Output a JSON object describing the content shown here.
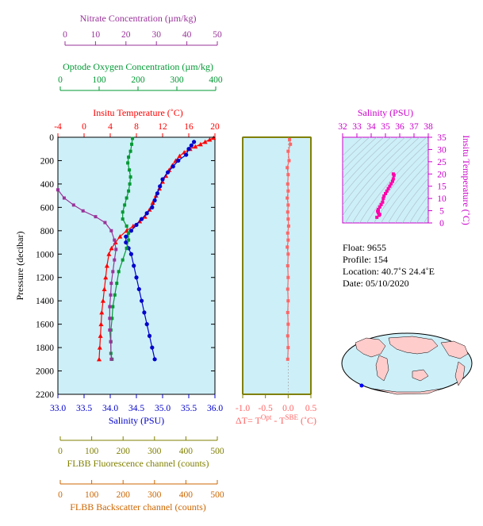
{
  "colors": {
    "nitrate": "#993399",
    "oxygen": "#009933",
    "temperature": "#ff0000",
    "salinity": "#0000cc",
    "delta": "#ff6666",
    "ts_axis": "#cc00cc",
    "flbb_fluor": "#808000",
    "flbb_back": "#cc6600",
    "plot_bg": "#cdeff8"
  },
  "info": {
    "float": "Float:  9655",
    "profile": "Profile:  154",
    "location": "Location:  40.7˚S  24.4˚E",
    "date": "Date:  05/10/2020"
  },
  "chart_data": [
    {
      "type": "line",
      "name": "main-profile",
      "ylabel": "Pressure (decibar)",
      "ylim": [
        0,
        2200
      ],
      "yticks": [
        0,
        200,
        400,
        600,
        800,
        1000,
        1200,
        1400,
        1600,
        1800,
        2000,
        2200
      ],
      "axes": [
        {
          "key": "nitrate",
          "label": "Nitrate Concentration (µm/kg)",
          "range": [
            0,
            50
          ],
          "ticks": [
            0,
            10,
            20,
            30,
            40,
            50
          ],
          "position": "top"
        },
        {
          "key": "oxygen",
          "label": "Optode Oxygen Concentration (µm/kg)",
          "range": [
            0,
            400
          ],
          "ticks": [
            0,
            100,
            200,
            300,
            400
          ],
          "position": "top"
        },
        {
          "key": "temperature",
          "label": "Insitu Temperature (˚C)",
          "range": [
            -4,
            20
          ],
          "ticks": [
            -4,
            0,
            4,
            8,
            12,
            16,
            20
          ],
          "position": "top"
        },
        {
          "key": "salinity",
          "label": "Salinity (PSU)",
          "range": [
            33.0,
            36.0
          ],
          "ticks": [
            "33.0",
            "33.5",
            "34.0",
            "34.5",
            "35.0",
            "35.5",
            "36.0"
          ],
          "position": "bottom"
        },
        {
          "key": "fluor",
          "label": "FLBB Fluorescence channel (counts)",
          "range": [
            0,
            500
          ],
          "ticks": [
            0,
            100,
            200,
            300,
            400,
            500
          ],
          "position": "bottom"
        },
        {
          "key": "back",
          "label": "FLBB Backscatter channel (counts)",
          "range": [
            0,
            500
          ],
          "ticks": [
            0,
            100,
            200,
            300,
            400,
            500
          ],
          "position": "bottom"
        }
      ],
      "series": [
        {
          "key": "temperature",
          "marker": "triangle",
          "points": [
            [
              19.8,
              5
            ],
            [
              19.2,
              20
            ],
            [
              18.5,
              40
            ],
            [
              17.8,
              60
            ],
            [
              17.0,
              80
            ],
            [
              16.2,
              100
            ],
            [
              15.3,
              130
            ],
            [
              14.6,
              160
            ],
            [
              14.0,
              200
            ],
            [
              13.5,
              240
            ],
            [
              13.0,
              280
            ],
            [
              12.5,
              330
            ],
            [
              12.0,
              380
            ],
            [
              11.5,
              440
            ],
            [
              11.0,
              500
            ],
            [
              10.5,
              560
            ],
            [
              10.0,
              620
            ],
            [
              9.3,
              680
            ],
            [
              8.5,
              720
            ],
            [
              7.5,
              760
            ],
            [
              6.5,
              800
            ],
            [
              5.5,
              850
            ],
            [
              4.8,
              900
            ],
            [
              4.2,
              950
            ],
            [
              3.8,
              1000
            ],
            [
              3.5,
              1100
            ],
            [
              3.3,
              1200
            ],
            [
              3.1,
              1300
            ],
            [
              2.9,
              1400
            ],
            [
              2.7,
              1500
            ],
            [
              2.6,
              1600
            ],
            [
              2.5,
              1700
            ],
            [
              2.4,
              1800
            ],
            [
              2.3,
              1900
            ]
          ]
        },
        {
          "key": "salinity",
          "marker": "circle",
          "points": [
            [
              35.6,
              40
            ],
            [
              35.55,
              70
            ],
            [
              35.5,
              100
            ],
            [
              35.45,
              150
            ],
            [
              35.3,
              200
            ],
            [
              35.2,
              250
            ],
            [
              35.1,
              300
            ],
            [
              35.0,
              360
            ],
            [
              34.95,
              420
            ],
            [
              34.9,
              480
            ],
            [
              34.85,
              540
            ],
            [
              34.8,
              600
            ],
            [
              34.7,
              650
            ],
            [
              34.6,
              700
            ],
            [
              34.5,
              750
            ],
            [
              34.4,
              800
            ],
            [
              34.3,
              850
            ],
            [
              34.3,
              900
            ],
            [
              34.35,
              950
            ],
            [
              34.4,
              1000
            ],
            [
              34.45,
              1100
            ],
            [
              34.5,
              1200
            ],
            [
              34.55,
              1300
            ],
            [
              34.6,
              1400
            ],
            [
              34.65,
              1500
            ],
            [
              34.7,
              1600
            ],
            [
              34.75,
              1700
            ],
            [
              34.8,
              1800
            ],
            [
              34.85,
              1900
            ]
          ]
        },
        {
          "key": "oxygen",
          "marker": "square",
          "points": [
            [
              190,
              10
            ],
            [
              188,
              60
            ],
            [
              185,
              120
            ],
            [
              180,
              170
            ],
            [
              178,
              220
            ],
            [
              182,
              280
            ],
            [
              185,
              340
            ],
            [
              183,
              400
            ],
            [
              180,
              460
            ],
            [
              175,
              520
            ],
            [
              170,
              580
            ],
            [
              165,
              640
            ],
            [
              165,
              700
            ],
            [
              175,
              760
            ],
            [
              180,
              820
            ],
            [
              180,
              880
            ],
            [
              175,
              950
            ],
            [
              165,
              1050
            ],
            [
              155,
              1150
            ],
            [
              150,
              1250
            ],
            [
              145,
              1350
            ],
            [
              140,
              1450
            ],
            [
              138,
              1550
            ],
            [
              135,
              1650
            ],
            [
              135,
              1750
            ],
            [
              135,
              1850
            ],
            [
              138,
              1900
            ]
          ]
        },
        {
          "key": "nitrate",
          "marker": "square",
          "points": [
            [
              0,
              450
            ],
            [
              2,
              520
            ],
            [
              5,
              580
            ],
            [
              8,
              630
            ],
            [
              12,
              680
            ],
            [
              15,
              730
            ],
            [
              17,
              800
            ],
            [
              18,
              880
            ],
            [
              18.5,
              960
            ],
            [
              18,
              1050
            ],
            [
              17.5,
              1150
            ],
            [
              17,
              1250
            ],
            [
              16.8,
              1350
            ],
            [
              16.5,
              1450
            ],
            [
              16.5,
              1550
            ],
            [
              16.5,
              1650
            ],
            [
              16.8,
              1750
            ],
            [
              17,
              1900
            ]
          ]
        }
      ]
    },
    {
      "type": "scatter",
      "name": "delta-t",
      "xlabel": "ΔT= T^Opt - T^SBE (˚C)",
      "xlabel_parts": {
        "prefix": "ΔT= T",
        "sup1": "Opt",
        "mid": " - T",
        "sup2": "SBE",
        "suffix": " (˚C)"
      },
      "xlim": [
        -1.0,
        0.5
      ],
      "xticks": [
        "-1.0",
        "-0.5",
        "0.0",
        "0.5"
      ],
      "ylim": [
        0,
        2200
      ],
      "points": [
        [
          0.03,
          20
        ],
        [
          0.05,
          60
        ],
        [
          0.0,
          120
        ],
        [
          0.02,
          200
        ],
        [
          -0.02,
          260
        ],
        [
          0.0,
          320
        ],
        [
          -0.01,
          400
        ],
        [
          0.0,
          460
        ],
        [
          -0.02,
          520
        ],
        [
          0.0,
          580
        ],
        [
          -0.01,
          640
        ],
        [
          0.0,
          700
        ],
        [
          0.01,
          760
        ],
        [
          -0.01,
          820
        ],
        [
          0.0,
          880
        ],
        [
          -0.02,
          940
        ],
        [
          0.0,
          1000
        ],
        [
          -0.01,
          1100
        ],
        [
          0.0,
          1200
        ],
        [
          -0.01,
          1300
        ],
        [
          0.0,
          1400
        ],
        [
          -0.01,
          1500
        ],
        [
          0.0,
          1600
        ],
        [
          -0.01,
          1700
        ],
        [
          0.0,
          1800
        ],
        [
          -0.01,
          1900
        ]
      ]
    },
    {
      "type": "line",
      "name": "ts-diagram",
      "xlabel": "Salinity (PSU)",
      "ylabel": "Insitu Temperature (˚C)",
      "xlim": [
        32,
        38
      ],
      "ylim": [
        0,
        35
      ],
      "xticks": [
        32,
        33,
        34,
        35,
        36,
        37,
        38
      ],
      "yticks": [
        0,
        5,
        10,
        15,
        20,
        25,
        30,
        35
      ],
      "points": [
        [
          34.4,
          2.3
        ],
        [
          34.55,
          3.1
        ],
        [
          34.6,
          3.5
        ],
        [
          34.5,
          4.2
        ],
        [
          34.45,
          4.8
        ],
        [
          34.5,
          5.5
        ],
        [
          34.6,
          6.5
        ],
        [
          34.7,
          7.5
        ],
        [
          34.8,
          8.5
        ],
        [
          34.85,
          10
        ],
        [
          34.9,
          11
        ],
        [
          35.0,
          12
        ],
        [
          35.1,
          13
        ],
        [
          35.2,
          14
        ],
        [
          35.3,
          15
        ],
        [
          35.4,
          16
        ],
        [
          35.5,
          17
        ],
        [
          35.55,
          18
        ],
        [
          35.6,
          19.5
        ],
        [
          35.55,
          20
        ]
      ]
    }
  ]
}
